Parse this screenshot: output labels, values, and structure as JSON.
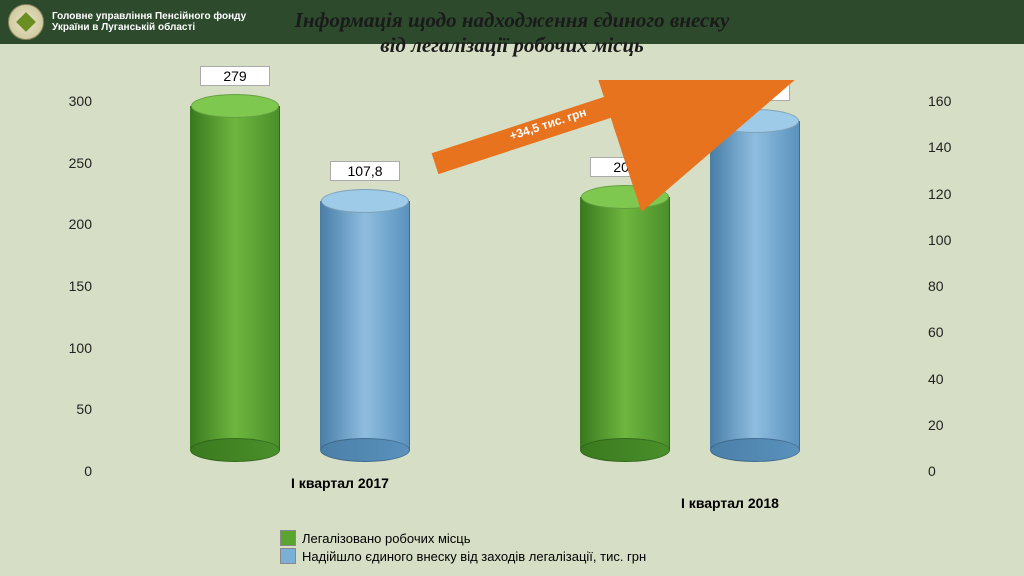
{
  "header": {
    "org": "Головне управління Пенсійного фонду України в Луганській області"
  },
  "title": {
    "line1": "Інформація щодо надходження єдиного внеску",
    "line2": "від легалізації робочих місць",
    "fontsize": 21
  },
  "chart": {
    "type": "grouped-cylinder-bar",
    "background": "#d6dec5",
    "left_axis": {
      "ticks": [
        0,
        50,
        100,
        150,
        200,
        250,
        300
      ],
      "max": 300,
      "fontsize": 14
    },
    "right_axis": {
      "ticks": [
        0,
        20,
        40,
        60,
        80,
        100,
        120,
        140,
        160
      ],
      "max": 160,
      "fontsize": 14
    },
    "groups": [
      {
        "label": "I квартал 2017",
        "bars": [
          {
            "series": 0,
            "value": 279,
            "axis": "left",
            "label": "279"
          },
          {
            "series": 1,
            "value": 107.8,
            "axis": "right",
            "label": "107,8"
          }
        ]
      },
      {
        "label": "I квартал 2018",
        "bars": [
          {
            "series": 0,
            "value": 205,
            "axis": "left",
            "label": "205"
          },
          {
            "series": 1,
            "value": 142.3,
            "axis": "right",
            "label": "142,3"
          }
        ]
      }
    ],
    "series": [
      {
        "name": "Легалізовано робочих місць",
        "body_gradient": [
          "#3a7a1f",
          "#6fb63f",
          "#4a8f2a"
        ],
        "top_color": "#7ec850",
        "swatch": "#5aa52f"
      },
      {
        "name": "Надійшло єдиного внеску від заходів легалізації, тис. грн",
        "body_gradient": [
          "#4a7fa8",
          "#8fbde0",
          "#5a92bd"
        ],
        "top_color": "#9ecbe8",
        "swatch": "#7ab0d6"
      }
    ],
    "arrow": {
      "label": "+34,5 тис. грн",
      "color": "#e8731f",
      "border": "#3a6a8a"
    },
    "legend_fontsize": 13
  }
}
